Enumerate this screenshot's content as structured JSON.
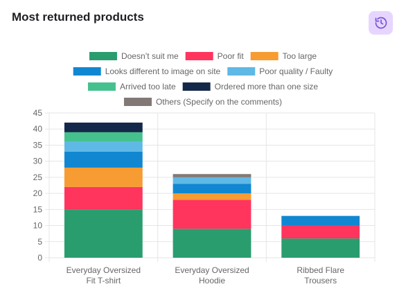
{
  "card": {
    "title": "Most returned products",
    "history_icon": "history-icon",
    "accent_color": "#e6d6ff",
    "icon_color": "#7b4fd6"
  },
  "chart_data": {
    "type": "bar",
    "stacked": true,
    "categories": [
      [
        "Everyday Oversized",
        "Fit T-shirt"
      ],
      [
        "Everyday Oversized",
        "Hoodie"
      ],
      [
        "Ribbed Flare",
        "Trousers"
      ]
    ],
    "series": [
      {
        "name": "Doesn’t suit me",
        "color": "#2a9d6f",
        "values": [
          15,
          9,
          6
        ]
      },
      {
        "name": "Poor fit",
        "color": "#ff355e",
        "values": [
          7,
          9,
          4
        ]
      },
      {
        "name": "Too large",
        "color": "#f79c32",
        "values": [
          6,
          2,
          0
        ]
      },
      {
        "name": "Looks different to image on site",
        "color": "#1187d1",
        "values": [
          5,
          3,
          3
        ]
      },
      {
        "name": "Poor quality / Faulty",
        "color": "#5fb9e6",
        "values": [
          3,
          2,
          0
        ]
      },
      {
        "name": "Arrived too late",
        "color": "#45c18d",
        "values": [
          3,
          0,
          0
        ]
      },
      {
        "name": "Ordered more than one size",
        "color": "#14284a",
        "values": [
          3,
          0,
          0
        ]
      },
      {
        "name": "Others (Specify on the comments)",
        "color": "#827876",
        "values": [
          0,
          1,
          0
        ]
      }
    ],
    "legend_rows": [
      [
        0,
        1,
        2
      ],
      [
        3,
        4
      ],
      [
        5,
        6
      ],
      [
        7
      ]
    ],
    "ylim": [
      0,
      45
    ],
    "yticks": [
      0,
      5,
      10,
      15,
      20,
      25,
      30,
      35,
      40,
      45
    ],
    "grid": true,
    "legend_position": "top",
    "xlabel": "",
    "ylabel": ""
  }
}
